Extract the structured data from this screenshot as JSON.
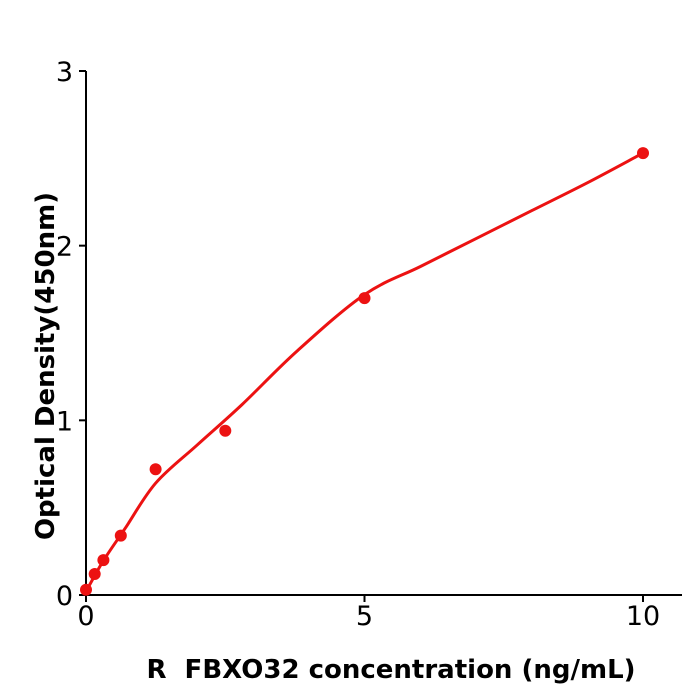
{
  "figure": {
    "background": "#ffffff",
    "axis_color": "#000000",
    "accent_red": "#ec1212"
  },
  "chart_data": {
    "type": "scatter",
    "title": "",
    "xlabel": "R  FBXO32 concentration (ng/mL)",
    "ylabel": "Optical Density(450nm)",
    "xlim": [
      0,
      10.7
    ],
    "ylim": [
      0,
      3
    ],
    "xticks": [
      0,
      5,
      10
    ],
    "yticks": [
      0,
      1,
      2,
      3
    ],
    "grid": false,
    "legend": null,
    "marker_color": "#ec1212",
    "line_color": "#ec1212",
    "series": [
      {
        "name": "standard-data-points",
        "type": "scatter",
        "x": [
          0,
          0.156,
          0.3125,
          0.625,
          1.25,
          2.5,
          5,
          10
        ],
        "y": [
          0.03,
          0.12,
          0.2,
          0.34,
          0.72,
          0.94,
          1.7,
          2.53
        ]
      },
      {
        "name": "fitted-curve",
        "type": "line",
        "x": [
          0,
          0.3,
          0.7,
          1.25,
          2.0,
          2.8,
          3.8,
          5.0,
          6.0,
          7.0,
          8.0,
          9.0,
          10.0
        ],
        "y": [
          0.02,
          0.19,
          0.38,
          0.64,
          0.86,
          1.09,
          1.4,
          1.72,
          1.88,
          2.04,
          2.2,
          2.36,
          2.53
        ]
      }
    ]
  }
}
